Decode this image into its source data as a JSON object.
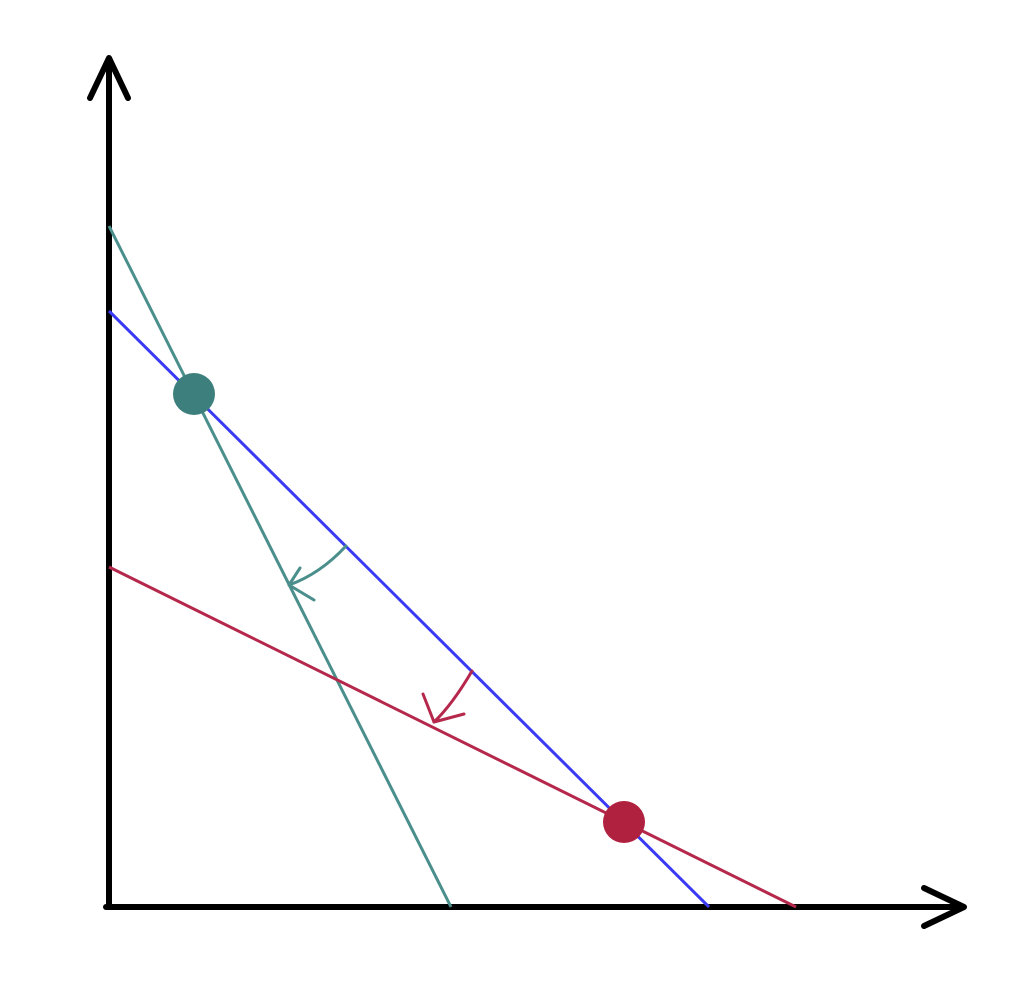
{
  "colors": {
    "background": "#ffffff",
    "axes": "#000000",
    "original_line": "#3a3af5",
    "teal_line": "#4a8f8c",
    "crimson_line": "#b5284c",
    "teal_point": "#3d7f7c",
    "crimson_point": "#b0203f"
  },
  "icons": {
    "y_axis_arrow": "arrow-up-icon",
    "x_axis_arrow": "arrow-right-icon",
    "teal_shift_arrow": "curved-arrow-icon",
    "crimson_shift_arrow": "curved-arrow-icon"
  }
}
